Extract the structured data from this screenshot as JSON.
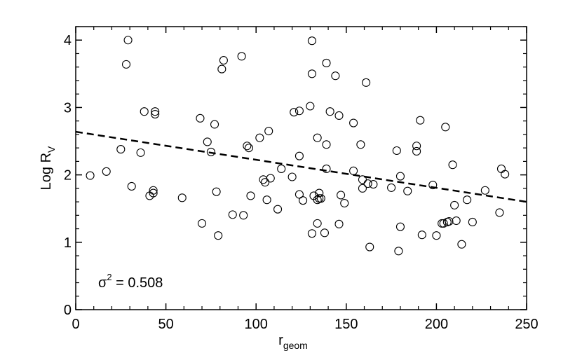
{
  "chart_data": {
    "type": "scatter",
    "xlabel": {
      "main": "r",
      "sub": "geom"
    },
    "ylabel": {
      "main": "Log R",
      "sub": "V"
    },
    "xlim": [
      0,
      250
    ],
    "ylim": [
      0,
      4.2
    ],
    "xticks": [
      0,
      50,
      100,
      150,
      200,
      250
    ],
    "yticks": [
      0,
      1,
      2,
      3,
      4
    ],
    "grid": false,
    "annotation": {
      "symbol": "σ",
      "power": "2",
      "text": " = 0.508"
    },
    "fit_line": {
      "style": "dashed",
      "x": [
        0,
        250
      ],
      "y": [
        2.64,
        1.6
      ]
    },
    "points": [
      [
        8,
        1.99
      ],
      [
        17,
        2.05
      ],
      [
        25,
        2.38
      ],
      [
        28,
        3.64
      ],
      [
        29,
        4.0
      ],
      [
        31,
        1.83
      ],
      [
        36,
        2.33
      ],
      [
        38,
        2.94
      ],
      [
        41,
        1.69
      ],
      [
        43,
        1.73
      ],
      [
        43,
        1.77
      ],
      [
        44,
        2.9
      ],
      [
        44,
        2.94
      ],
      [
        59,
        1.66
      ],
      [
        69,
        2.84
      ],
      [
        70,
        1.28
      ],
      [
        73,
        2.49
      ],
      [
        75,
        2.34
      ],
      [
        77,
        2.75
      ],
      [
        78,
        1.75
      ],
      [
        79,
        1.1
      ],
      [
        81,
        3.57
      ],
      [
        82,
        3.7
      ],
      [
        87,
        1.41
      ],
      [
        92,
        3.76
      ],
      [
        93,
        1.4
      ],
      [
        95,
        2.43
      ],
      [
        96,
        2.4
      ],
      [
        97,
        1.69
      ],
      [
        102,
        2.55
      ],
      [
        104,
        1.93
      ],
      [
        105,
        1.89
      ],
      [
        106,
        1.63
      ],
      [
        107,
        2.65
      ],
      [
        108,
        1.95
      ],
      [
        112,
        1.49
      ],
      [
        114,
        2.09
      ],
      [
        120,
        1.97
      ],
      [
        121,
        2.93
      ],
      [
        124,
        2.95
      ],
      [
        124,
        2.28
      ],
      [
        124,
        1.71
      ],
      [
        126,
        1.62
      ],
      [
        130,
        3.02
      ],
      [
        131,
        3.99
      ],
      [
        131,
        3.5
      ],
      [
        131,
        1.13
      ],
      [
        132,
        1.69
      ],
      [
        134,
        2.55
      ],
      [
        134,
        1.63
      ],
      [
        134,
        1.28
      ],
      [
        135,
        1.65
      ],
      [
        135,
        1.73
      ],
      [
        136,
        1.65
      ],
      [
        138,
        1.14
      ],
      [
        139,
        3.66
      ],
      [
        139,
        2.45
      ],
      [
        139,
        2.09
      ],
      [
        141,
        2.94
      ],
      [
        144,
        3.47
      ],
      [
        146,
        2.88
      ],
      [
        146,
        1.27
      ],
      [
        147,
        1.7
      ],
      [
        149,
        1.58
      ],
      [
        154,
        2.77
      ],
      [
        154,
        2.06
      ],
      [
        158,
        2.45
      ],
      [
        159,
        1.8
      ],
      [
        159,
        1.93
      ],
      [
        161,
        3.37
      ],
      [
        162,
        1.87
      ],
      [
        163,
        0.93
      ],
      [
        165,
        1.86
      ],
      [
        175,
        1.81
      ],
      [
        178,
        2.36
      ],
      [
        179,
        0.87
      ],
      [
        180,
        1.23
      ],
      [
        180,
        1.98
      ],
      [
        184,
        1.76
      ],
      [
        189,
        2.35
      ],
      [
        189,
        2.43
      ],
      [
        191,
        2.81
      ],
      [
        192,
        1.11
      ],
      [
        198,
        1.85
      ],
      [
        200,
        1.1
      ],
      [
        203,
        1.28
      ],
      [
        204,
        1.28
      ],
      [
        206,
        1.3
      ],
      [
        205,
        2.71
      ],
      [
        207,
        1.31
      ],
      [
        209,
        2.15
      ],
      [
        210,
        1.55
      ],
      [
        211,
        1.32
      ],
      [
        214,
        0.97
      ],
      [
        217,
        1.63
      ],
      [
        220,
        1.3
      ],
      [
        227,
        1.77
      ],
      [
        235,
        1.44
      ],
      [
        236,
        2.09
      ],
      [
        238,
        2.01
      ]
    ]
  }
}
